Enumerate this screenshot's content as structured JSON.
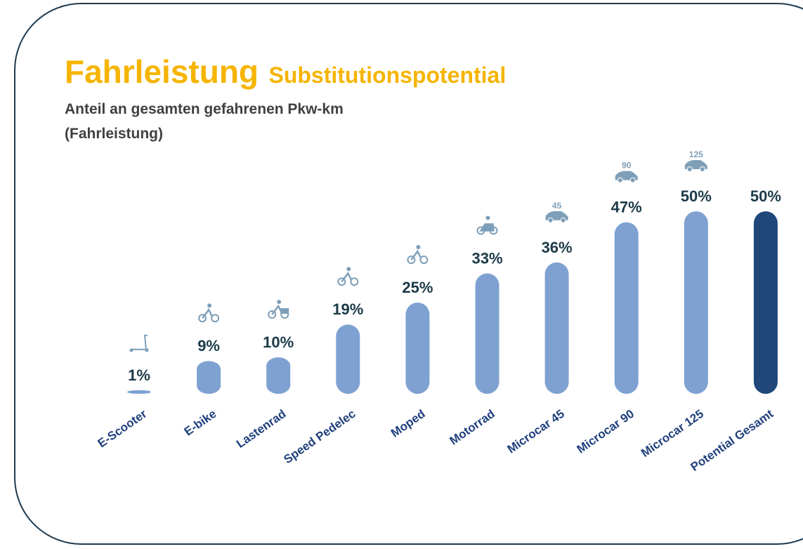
{
  "chart_data": {
    "type": "bar",
    "title": "Fahrleistung",
    "title_suffix": "Substitutionspotential",
    "subtitle": [
      "Anteil an gesamten gefahrenen Pkw-km",
      "(Fahrleistung)"
    ],
    "categories": [
      "E-Scooter",
      "E-bike",
      "Lastenrad",
      "Speed Pedelec",
      "Moped",
      "Motorrad",
      "Microcar  45",
      "Microcar 90",
      "Microcar 125",
      "Potential Gesamt"
    ],
    "values": [
      1,
      9,
      10,
      19,
      25,
      33,
      36,
      47,
      50,
      50
    ],
    "value_labels": [
      "1%",
      "9%",
      "10%",
      "19%",
      "25%",
      "33%",
      "36%",
      "47%",
      "50%",
      "50%"
    ],
    "colors": [
      "#7ea1d1",
      "#7ea1d1",
      "#7ea1d1",
      "#7ea1d1",
      "#7ea1d1",
      "#7ea1d1",
      "#7ea1d1",
      "#7ea1d1",
      "#7ea1d1",
      "#1f477a"
    ],
    "icon_labels": [
      null,
      null,
      null,
      null,
      null,
      null,
      "45",
      "90",
      "125",
      null
    ]
  }
}
